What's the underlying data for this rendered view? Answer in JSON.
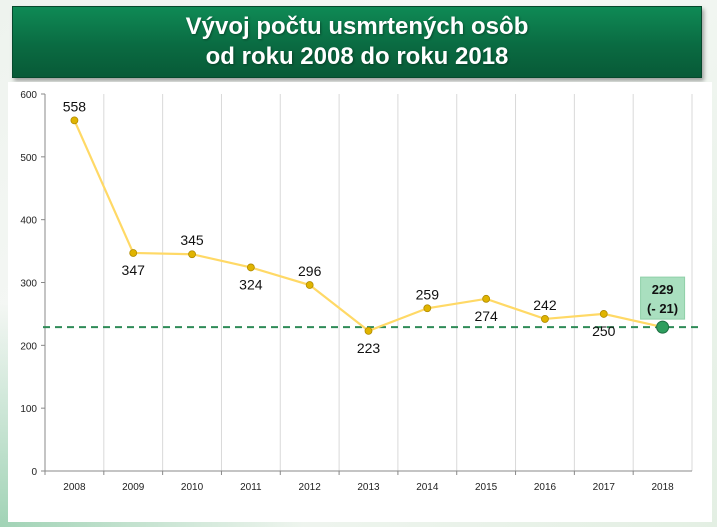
{
  "title": {
    "line1": "Vývoj počtu usmrtených osôb",
    "line2": "od roku 2008 do roku 2018"
  },
  "colors": {
    "banner": "#0a6b42",
    "line": "#ffd966",
    "point": "#e0b400",
    "highlight_point": "#2e9e5e",
    "reference_line": "#2e8b57",
    "highlight_box": "#a9dfbf",
    "grid": "#d9d9d9"
  },
  "chart_data": {
    "type": "line",
    "categories": [
      "2008",
      "2009",
      "2010",
      "2011",
      "2012",
      "2013",
      "2014",
      "2015",
      "2016",
      "2017",
      "2018"
    ],
    "series": [
      {
        "values": [
          558,
          347,
          345,
          324,
          296,
          223,
          259,
          274,
          242,
          250,
          229
        ]
      }
    ],
    "data_labels": [
      "558",
      "347",
      "345",
      "324",
      "296",
      "223",
      "259",
      "274",
      "242",
      "250",
      "229"
    ],
    "label_positions": [
      "above",
      "below",
      "above",
      "below",
      "above",
      "below",
      "above",
      "below",
      "above",
      "below",
      "above"
    ],
    "ylim": [
      0,
      600
    ],
    "yticks": [
      0,
      100,
      200,
      300,
      400,
      500,
      600
    ],
    "grid": "vertical",
    "reference_line": {
      "value": 229,
      "style": "dashed"
    },
    "highlight": {
      "index": 10,
      "line1": "229",
      "line2": "(- 21)"
    },
    "xlabel": "",
    "ylabel": ""
  }
}
